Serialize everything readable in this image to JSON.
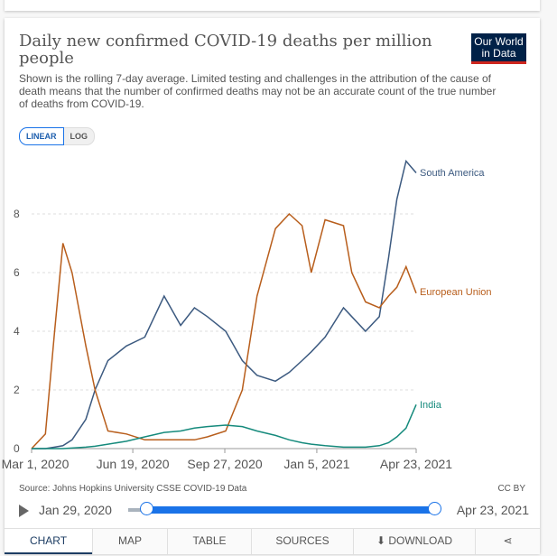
{
  "header": {
    "title": "Daily new confirmed COVID-19 deaths per million people",
    "subtitle": "Shown is the rolling 7-day average. Limited testing and challenges in the attribution of the cause of death means that the number of confirmed deaths may not be an accurate count of the true number of deaths from COVID-19.",
    "logo": "Our World in Data"
  },
  "scale_toggle": {
    "linear": "LINEAR",
    "log": "LOG",
    "selected": "LINEAR"
  },
  "footer": {
    "source": "Source: Johns Hopkins University CSSE COVID-19 Data",
    "license": "CC BY"
  },
  "timeline": {
    "start": "Jan 29, 2020",
    "end": "Apr 23, 2021",
    "play_icon": "play-icon"
  },
  "tabs": [
    {
      "label": "CHART"
    },
    {
      "label": "MAP"
    },
    {
      "label": "TABLE"
    },
    {
      "label": "SOURCES"
    },
    {
      "label": "DOWNLOAD",
      "icon": "download-icon"
    },
    {
      "label": "",
      "icon": "share-icon"
    }
  ],
  "chart_data": {
    "type": "line",
    "title": "Daily new confirmed COVID-19 deaths per million people",
    "x_ticks": [
      "Mar 1, 2020",
      "Jun 19, 2020",
      "Sep 27, 2020",
      "Jan 5, 2021",
      "Apr 23, 2021"
    ],
    "x_tick_dates": [
      "2020-03-01",
      "2020-06-19",
      "2020-09-27",
      "2021-01-05",
      "2021-04-23"
    ],
    "y_ticks": [
      0,
      2,
      4,
      6,
      8
    ],
    "ylim": [
      0,
      10
    ],
    "xlim": [
      "2020-03-01",
      "2021-04-23"
    ],
    "grid": "horizontal dashed",
    "legend": "inline labels at line ends",
    "x": [
      "2020-03-01",
      "2020-03-16",
      "2020-03-26",
      "2020-04-04",
      "2020-04-14",
      "2020-04-29",
      "2020-05-09",
      "2020-05-23",
      "2020-06-12",
      "2020-07-02",
      "2020-07-23",
      "2020-08-10",
      "2020-08-25",
      "2020-09-08",
      "2020-09-28",
      "2020-10-16",
      "2020-11-01",
      "2020-11-21",
      "2020-12-06",
      "2020-12-20",
      "2020-12-30",
      "2021-01-14",
      "2021-02-03",
      "2021-02-12",
      "2021-02-27",
      "2021-03-14",
      "2021-03-24",
      "2021-04-02",
      "2021-04-12",
      "2021-04-23"
    ],
    "series": [
      {
        "name": "South America",
        "color": "#3c5a80",
        "values": [
          0,
          0,
          0.05,
          0.1,
          0.3,
          1,
          2,
          3,
          3.5,
          3.8,
          5.2,
          4.2,
          4.8,
          4.5,
          4,
          3,
          2.5,
          2.3,
          2.6,
          3,
          3.3,
          3.8,
          4.8,
          4.5,
          4,
          4.5,
          6.5,
          8.5,
          9.8,
          9.4
        ]
      },
      {
        "name": "European Union",
        "color": "#b85e1c",
        "values": [
          0,
          0.5,
          4,
          7,
          6,
          3.5,
          2,
          0.6,
          0.5,
          0.3,
          0.3,
          0.3,
          0.3,
          0.4,
          0.6,
          2,
          5.2,
          7.5,
          8,
          7.6,
          6,
          7.8,
          7.6,
          6,
          5,
          4.8,
          5.2,
          5.5,
          6.2,
          5.3
        ]
      },
      {
        "name": "India",
        "color": "#158a7c",
        "values": [
          0,
          0,
          0,
          0,
          0.02,
          0.05,
          0.08,
          0.15,
          0.25,
          0.4,
          0.55,
          0.6,
          0.7,
          0.75,
          0.8,
          0.75,
          0.6,
          0.45,
          0.3,
          0.2,
          0.15,
          0.1,
          0.05,
          0.05,
          0.05,
          0.1,
          0.2,
          0.4,
          0.7,
          1.5
        ]
      }
    ]
  }
}
